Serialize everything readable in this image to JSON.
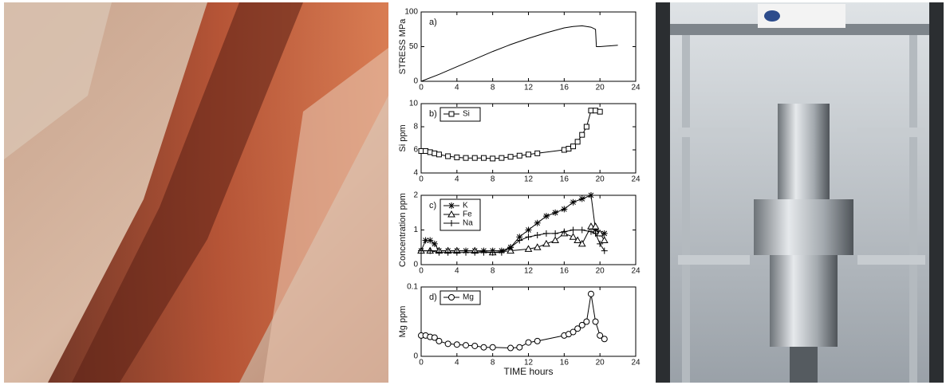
{
  "chart_data": [
    {
      "type": "line",
      "label": "a)",
      "ylabel": "STRESS MPa",
      "xlim": [
        0,
        24
      ],
      "xticks": [
        0,
        4,
        8,
        12,
        16,
        20,
        24
      ],
      "ylim": [
        0,
        100
      ],
      "yticks": [
        0,
        50,
        100
      ],
      "series": [
        {
          "color": "#000000",
          "marker": "none",
          "x": [
            0,
            2,
            4,
            6,
            8,
            10,
            12,
            14,
            16,
            17,
            18,
            19,
            19.5,
            19.6,
            20,
            21,
            22
          ],
          "values": [
            0,
            10,
            21,
            32,
            43,
            53,
            62,
            70,
            77,
            79,
            80,
            78,
            75,
            50,
            50,
            51,
            52
          ]
        }
      ]
    },
    {
      "type": "line",
      "label": "b)",
      "ylabel": "Si ppm",
      "legend": "upper-left",
      "xlim": [
        0,
        24
      ],
      "xticks": [
        0,
        4,
        8,
        12,
        16,
        20,
        24
      ],
      "ylim": [
        4,
        10
      ],
      "yticks": [
        4,
        6,
        8,
        10
      ],
      "series": [
        {
          "name": "Si",
          "color": "#000000",
          "marker": "square",
          "x": [
            0,
            0.5,
            1,
            1.5,
            2,
            3,
            4,
            5,
            6,
            7,
            8,
            9,
            10,
            11,
            12,
            13,
            16,
            16.5,
            17,
            17.5,
            18,
            18.5,
            19,
            19.5,
            20
          ],
          "values": [
            5.9,
            5.9,
            5.8,
            5.7,
            5.6,
            5.45,
            5.35,
            5.3,
            5.3,
            5.3,
            5.25,
            5.3,
            5.4,
            5.5,
            5.6,
            5.7,
            6.0,
            6.1,
            6.3,
            6.7,
            7.3,
            8.0,
            9.4,
            9.4,
            9.3
          ]
        }
      ]
    },
    {
      "type": "line",
      "label": "c)",
      "ylabel": "Concentration ppm",
      "legend": "upper-left",
      "xlim": [
        0,
        24
      ],
      "xticks": [
        0,
        4,
        8,
        12,
        16,
        20,
        24
      ],
      "ylim": [
        0,
        2
      ],
      "yticks": [
        0,
        1,
        2
      ],
      "series": [
        {
          "name": "K",
          "color": "#000000",
          "marker": "asterisk",
          "x": [
            0,
            0.5,
            1,
            1.5,
            2,
            3,
            4,
            5,
            6,
            7,
            8,
            9,
            10,
            11,
            12,
            13,
            14,
            15,
            16,
            17,
            18,
            19,
            19.5,
            20,
            20.5
          ],
          "values": [
            0.4,
            0.7,
            0.7,
            0.6,
            0.4,
            0.4,
            0.4,
            0.4,
            0.4,
            0.4,
            0.4,
            0.4,
            0.5,
            0.8,
            1.0,
            1.2,
            1.4,
            1.5,
            1.6,
            1.8,
            1.9,
            2.0,
            1.0,
            0.9,
            0.9
          ]
        },
        {
          "name": "Fe",
          "color": "#000000",
          "marker": "triangle",
          "x": [
            0,
            1,
            2,
            3,
            4,
            6,
            8,
            10,
            12,
            13,
            14,
            15,
            16,
            17,
            17.5,
            18,
            19,
            19.5,
            20,
            20.5
          ],
          "values": [
            0.4,
            0.4,
            0.4,
            0.4,
            0.4,
            0.4,
            0.35,
            0.4,
            0.45,
            0.5,
            0.6,
            0.7,
            0.9,
            0.8,
            0.7,
            0.6,
            1.1,
            1.1,
            0.9,
            0.7
          ]
        },
        {
          "name": "Na",
          "color": "#000000",
          "marker": "plus",
          "x": [
            0,
            1,
            2,
            3,
            4,
            5,
            6,
            7,
            8,
            9,
            10,
            11,
            12,
            13,
            14,
            15,
            16,
            17,
            18,
            19,
            19.5,
            20,
            20.5
          ],
          "values": [
            0.4,
            0.4,
            0.35,
            0.35,
            0.35,
            0.35,
            0.35,
            0.35,
            0.35,
            0.35,
            0.5,
            0.7,
            0.8,
            0.85,
            0.9,
            0.9,
            0.95,
            1.0,
            1.0,
            0.95,
            0.9,
            0.6,
            0.4
          ]
        }
      ]
    },
    {
      "type": "line",
      "label": "d)",
      "ylabel": "Mg ppm",
      "xlabel": "TIME hours",
      "legend": "upper-left",
      "xlim": [
        0,
        24
      ],
      "xticks": [
        0,
        4,
        8,
        12,
        16,
        20,
        24
      ],
      "ylim": [
        0,
        0.1
      ],
      "yticks": [
        0,
        0.1
      ],
      "series": [
        {
          "name": "Mg",
          "color": "#000000",
          "marker": "circle",
          "x": [
            0,
            0.5,
            1,
            1.5,
            2,
            3,
            4,
            5,
            6,
            7,
            8,
            10,
            11,
            12,
            13,
            16,
            16.5,
            17,
            17.5,
            18,
            18.5,
            19,
            19.5,
            20,
            20.5
          ],
          "values": [
            0.03,
            0.03,
            0.028,
            0.027,
            0.022,
            0.018,
            0.017,
            0.016,
            0.015,
            0.013,
            0.013,
            0.012,
            0.013,
            0.02,
            0.022,
            0.03,
            0.032,
            0.035,
            0.04,
            0.045,
            0.05,
            0.09,
            0.05,
            0.03,
            0.025
          ]
        }
      ]
    }
  ]
}
